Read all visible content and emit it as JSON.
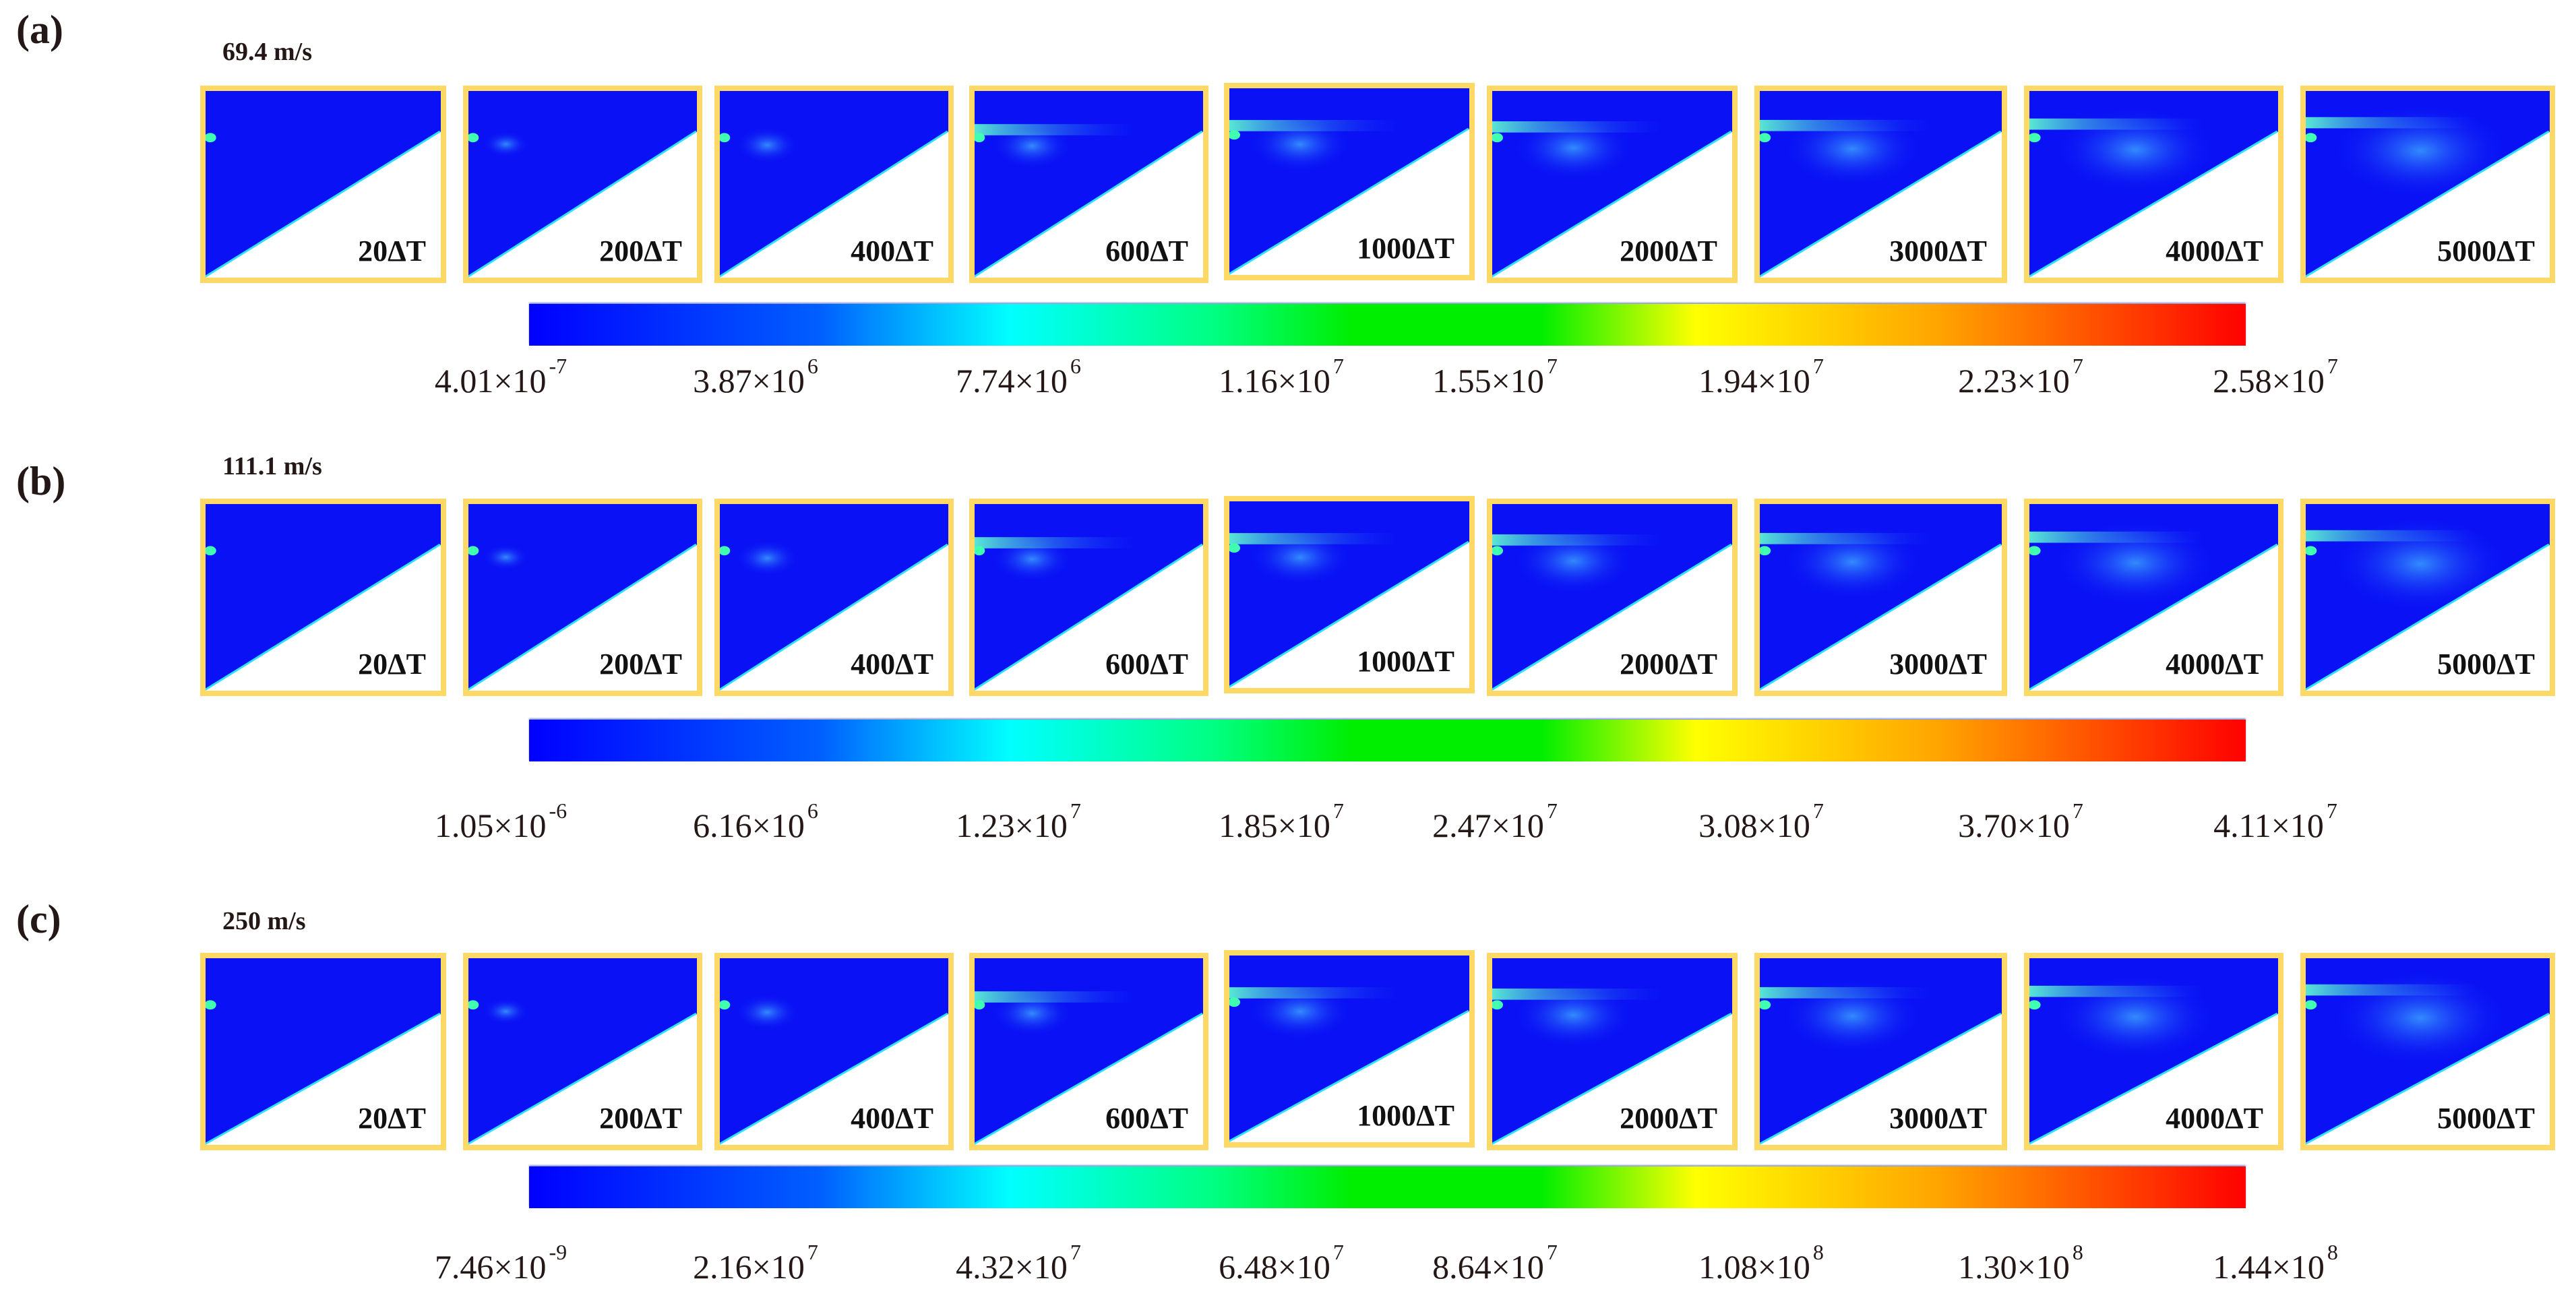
{
  "colors": {
    "frame_border": "#ffd966",
    "field_background": "#0a12f5",
    "colormap": "jet"
  },
  "panels": [
    {
      "label": "(a)",
      "speed": "69.4 m/s",
      "frames": [
        "20ΔT",
        "200ΔT",
        "400ΔT",
        "600ΔT",
        "1000ΔT",
        "2000ΔT",
        "3000ΔT",
        "4000ΔT",
        "5000ΔT"
      ],
      "colorbar": [
        {
          "m": "4.01",
          "e": "-7"
        },
        {
          "m": "3.87",
          "e": "6"
        },
        {
          "m": "7.74",
          "e": "6"
        },
        {
          "m": "1.16",
          "e": "7"
        },
        {
          "m": "1.55",
          "e": "7"
        },
        {
          "m": "1.94",
          "e": "7"
        },
        {
          "m": "2.23",
          "e": "7"
        },
        {
          "m": "2.58",
          "e": "7"
        }
      ]
    },
    {
      "label": "(b)",
      "speed": "111.1 m/s",
      "frames": [
        "20ΔT",
        "200ΔT",
        "400ΔT",
        "600ΔT",
        "1000ΔT",
        "2000ΔT",
        "3000ΔT",
        "4000ΔT",
        "5000ΔT"
      ],
      "colorbar": [
        {
          "m": "1.05",
          "e": "-6"
        },
        {
          "m": "6.16",
          "e": "6"
        },
        {
          "m": "1.23",
          "e": "7"
        },
        {
          "m": "1.85",
          "e": "7"
        },
        {
          "m": "2.47",
          "e": "7"
        },
        {
          "m": "3.08",
          "e": "7"
        },
        {
          "m": "3.70",
          "e": "7"
        },
        {
          "m": "4.11",
          "e": "7"
        }
      ]
    },
    {
      "label": "(c)",
      "speed": "250 m/s",
      "frames": [
        "20ΔT",
        "200ΔT",
        "400ΔT",
        "600ΔT",
        "1000ΔT",
        "2000ΔT",
        "3000ΔT",
        "4000ΔT",
        "5000ΔT"
      ],
      "colorbar": [
        {
          "m": "7.46",
          "e": "-9"
        },
        {
          "m": "2.16",
          "e": "7"
        },
        {
          "m": "4.32",
          "e": "7"
        },
        {
          "m": "6.48",
          "e": "7"
        },
        {
          "m": "8.64",
          "e": "7"
        },
        {
          "m": "1.08",
          "e": "8"
        },
        {
          "m": "1.30",
          "e": "8"
        },
        {
          "m": "1.44",
          "e": "8"
        }
      ]
    }
  ]
}
